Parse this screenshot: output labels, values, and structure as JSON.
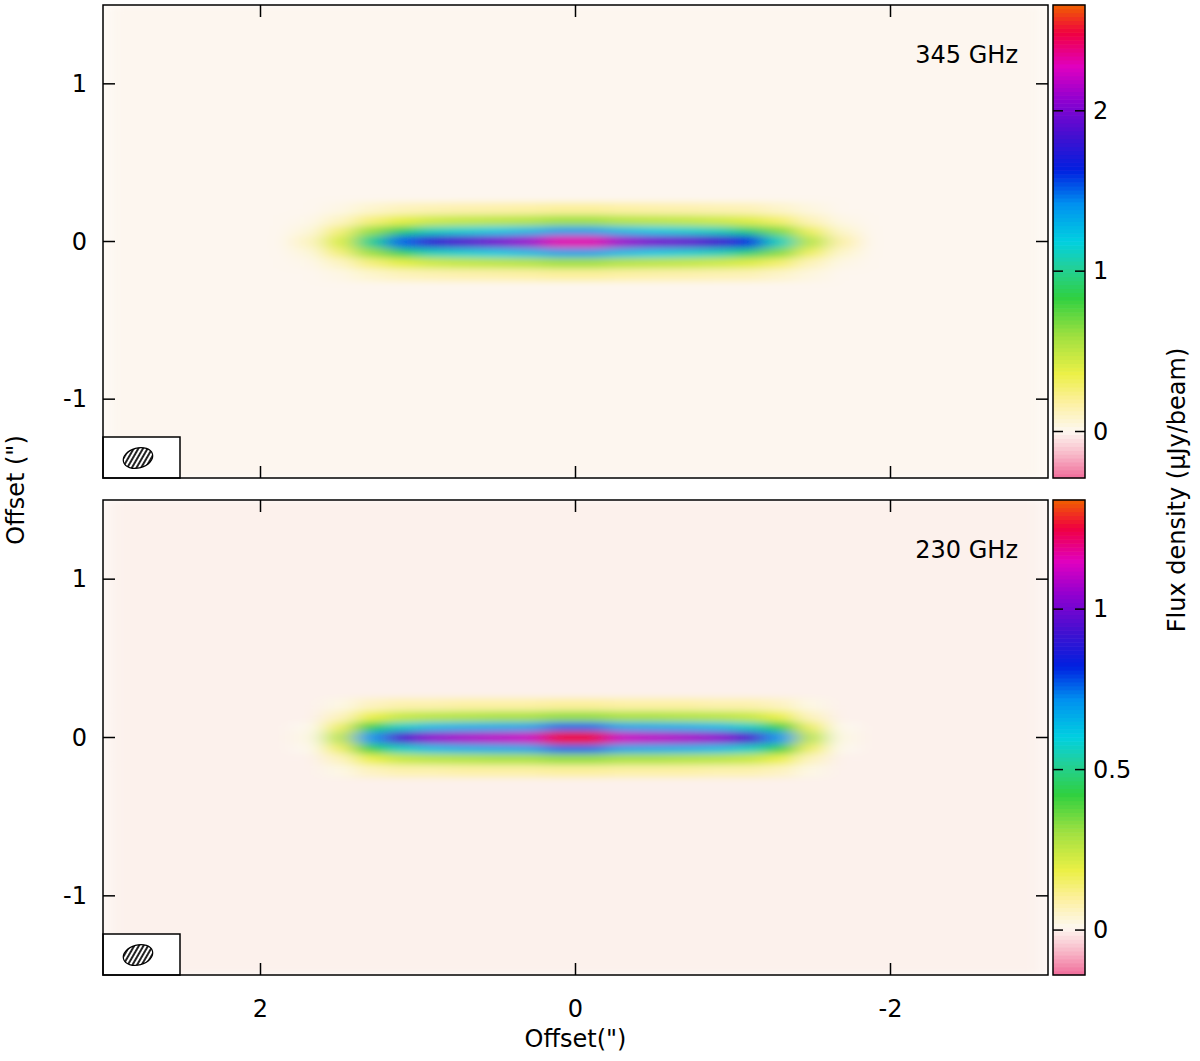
{
  "chart_data": [
    {
      "type": "heatmap",
      "title": "345 GHz",
      "ylabel": "Offset (\")",
      "xlim": [
        3,
        -3
      ],
      "ylim": [
        -1.5,
        1.5
      ],
      "xticks": [
        2,
        0,
        -2
      ],
      "yticks": [
        -1,
        0,
        1
      ],
      "tick_labels": "y",
      "x_edges": [
        3,
        1.8,
        1.6,
        1.4,
        1.2,
        1.0,
        0.8,
        0.6,
        0.4,
        0.2,
        0,
        -0.2,
        -0.4,
        -0.6,
        -0.8,
        -1.0,
        -1.2,
        -1.4,
        -1.6,
        -1.8,
        -3
      ],
      "y_edges": [
        -1.5,
        -0.25,
        -0.17,
        -0.1,
        -0.04,
        0.04,
        0.1,
        0.17,
        0.25,
        1.5
      ],
      "z": [
        [
          0,
          0,
          0,
          0,
          0,
          0,
          0,
          0,
          0,
          0,
          0,
          0,
          0,
          0,
          0,
          0,
          0,
          0,
          0,
          0
        ],
        [
          0,
          0,
          0.03,
          0.08,
          0.12,
          0.14,
          0.15,
          0.16,
          0.17,
          0.19,
          0.19,
          0.17,
          0.16,
          0.15,
          0.14,
          0.13,
          0.09,
          0.04,
          0,
          0
        ],
        [
          0,
          0.02,
          0.1,
          0.25,
          0.38,
          0.45,
          0.48,
          0.5,
          0.52,
          0.58,
          0.58,
          0.52,
          0.5,
          0.48,
          0.45,
          0.4,
          0.28,
          0.12,
          0.03,
          0
        ],
        [
          0,
          0.05,
          0.25,
          0.6,
          0.9,
          1.1,
          1.15,
          1.2,
          1.25,
          1.35,
          1.35,
          1.25,
          1.2,
          1.15,
          1.1,
          0.95,
          0.65,
          0.3,
          0.08,
          0
        ],
        [
          0,
          0.1,
          0.4,
          1.0,
          1.5,
          1.8,
          1.9,
          2.0,
          2.1,
          2.3,
          2.3,
          2.1,
          2.0,
          1.95,
          1.85,
          1.6,
          1.1,
          0.5,
          0.15,
          0
        ],
        [
          0,
          0.05,
          0.25,
          0.6,
          0.9,
          1.1,
          1.15,
          1.2,
          1.25,
          1.35,
          1.35,
          1.25,
          1.2,
          1.15,
          1.1,
          0.95,
          0.65,
          0.3,
          0.08,
          0
        ],
        [
          0,
          0.02,
          0.1,
          0.25,
          0.38,
          0.45,
          0.48,
          0.5,
          0.52,
          0.58,
          0.58,
          0.52,
          0.5,
          0.48,
          0.45,
          0.4,
          0.28,
          0.12,
          0.03,
          0
        ],
        [
          0,
          0,
          0.03,
          0.08,
          0.12,
          0.14,
          0.15,
          0.16,
          0.17,
          0.19,
          0.19,
          0.17,
          0.16,
          0.15,
          0.14,
          0.13,
          0.09,
          0.04,
          0,
          0
        ],
        [
          0,
          0,
          0,
          0,
          0,
          0,
          0,
          0,
          0,
          0,
          0,
          0,
          0,
          0,
          0,
          0,
          0,
          0,
          0,
          0
        ]
      ],
      "colorbar_lim": [
        -0.29,
        2.66
      ],
      "colorbar_ticks": [
        0,
        1,
        2
      ],
      "colorbar_label": "Flux density (µJy/beam)"
    },
    {
      "type": "heatmap",
      "title": "230 GHz",
      "xlabel": "Offset(\")",
      "xlim": [
        3,
        -3
      ],
      "ylim": [
        -1.5,
        1.5
      ],
      "xticks": [
        2,
        0,
        -2
      ],
      "yticks": [
        -1,
        0,
        1
      ],
      "x_edges": [
        3,
        1.8,
        1.6,
        1.4,
        1.2,
        1.0,
        0.8,
        0.6,
        0.4,
        0.2,
        0,
        -0.2,
        -0.4,
        -0.6,
        -0.8,
        -1.0,
        -1.2,
        -1.4,
        -1.6,
        -1.8,
        -3
      ],
      "y_edges": [
        -1.5,
        -0.25,
        -0.17,
        -0.1,
        -0.04,
        0.04,
        0.1,
        0.17,
        0.25,
        1.5
      ],
      "z": [
        [
          0,
          0,
          0,
          0,
          0,
          0,
          0,
          0,
          0,
          0,
          0,
          0,
          0,
          0,
          0,
          0,
          0,
          0,
          0,
          0
        ],
        [
          0,
          0,
          0.02,
          0.06,
          0.08,
          0.08,
          0.09,
          0.09,
          0.09,
          0.1,
          0.1,
          0.09,
          0.09,
          0.09,
          0.08,
          0.08,
          0.06,
          0.02,
          0,
          0
        ],
        [
          0,
          0,
          0.06,
          0.18,
          0.24,
          0.26,
          0.27,
          0.28,
          0.28,
          0.31,
          0.31,
          0.28,
          0.28,
          0.27,
          0.26,
          0.24,
          0.18,
          0.06,
          0,
          0
        ],
        [
          0,
          0.01,
          0.15,
          0.42,
          0.57,
          0.63,
          0.65,
          0.66,
          0.67,
          0.75,
          0.75,
          0.67,
          0.66,
          0.65,
          0.63,
          0.57,
          0.42,
          0.15,
          0.01,
          0
        ],
        [
          0,
          0.02,
          0.25,
          0.7,
          0.95,
          1.05,
          1.08,
          1.1,
          1.12,
          1.25,
          1.25,
          1.12,
          1.1,
          1.08,
          1.05,
          0.95,
          0.7,
          0.25,
          0.02,
          0
        ],
        [
          0,
          0.01,
          0.15,
          0.42,
          0.57,
          0.63,
          0.65,
          0.66,
          0.67,
          0.75,
          0.75,
          0.67,
          0.66,
          0.65,
          0.63,
          0.57,
          0.42,
          0.15,
          0.01,
          0
        ],
        [
          0,
          0,
          0.06,
          0.18,
          0.24,
          0.26,
          0.27,
          0.28,
          0.28,
          0.31,
          0.31,
          0.28,
          0.28,
          0.27,
          0.26,
          0.24,
          0.18,
          0.06,
          0,
          0
        ],
        [
          0,
          0,
          0.02,
          0.06,
          0.08,
          0.08,
          0.09,
          0.09,
          0.09,
          0.1,
          0.1,
          0.09,
          0.09,
          0.09,
          0.08,
          0.08,
          0.06,
          0.02,
          0,
          0
        ],
        [
          0,
          0,
          0,
          0,
          0,
          0,
          0,
          0,
          0,
          0,
          0,
          0,
          0,
          0,
          0,
          0,
          0,
          0,
          0,
          0
        ]
      ],
      "colorbar_lim": [
        -0.14,
        1.34
      ],
      "colorbar_ticks": [
        0,
        0.5,
        1
      ]
    }
  ]
}
